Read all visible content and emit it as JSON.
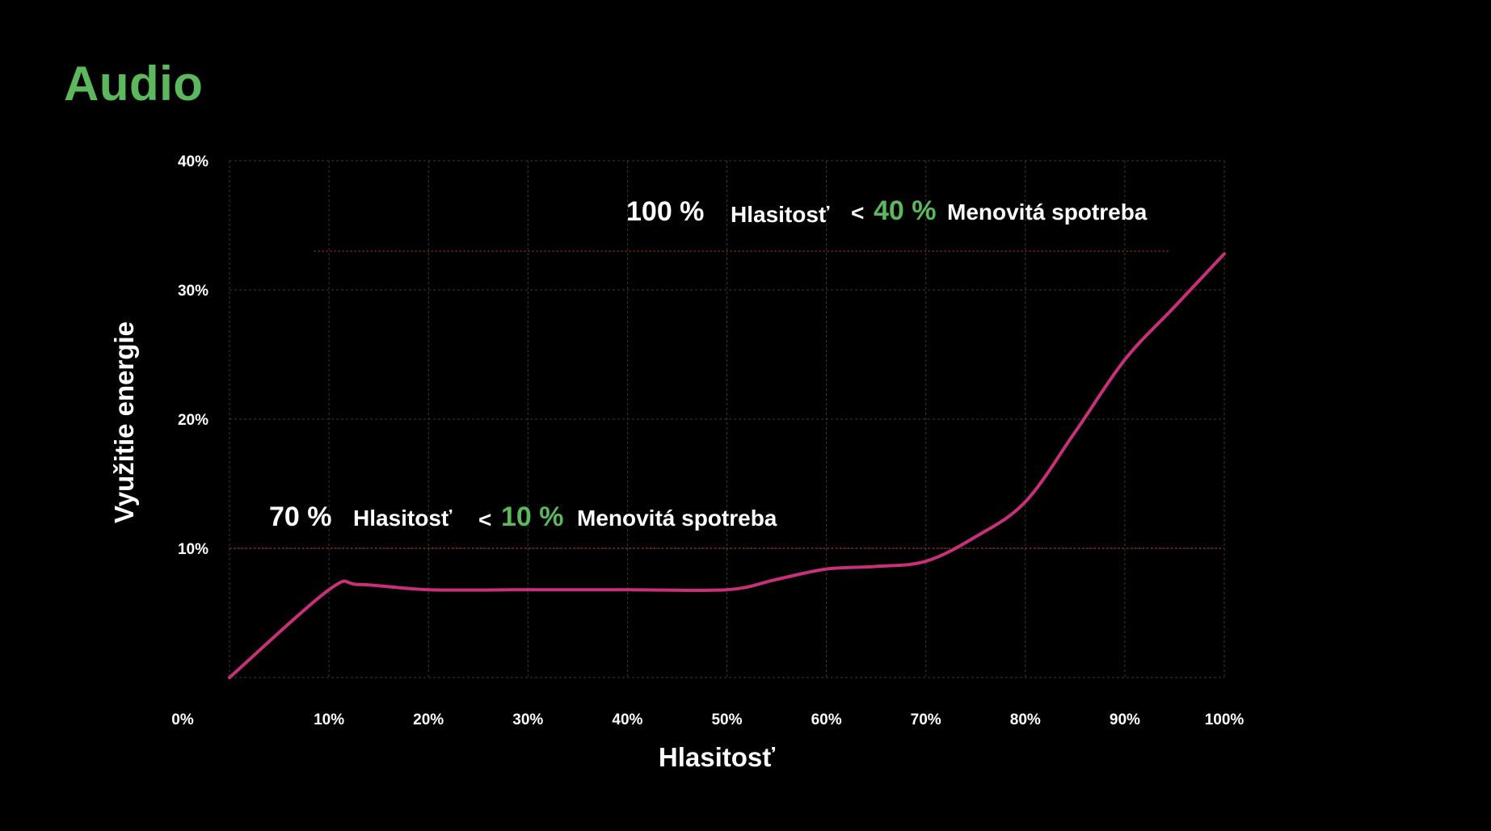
{
  "page": {
    "title": "Audio"
  },
  "chart_data": {
    "type": "line",
    "xlabel": "Hlasitosť",
    "ylabel": "Využitie energie",
    "xlim": [
      0,
      100
    ],
    "ylim": [
      0,
      40
    ],
    "x_ticks": [
      "0%",
      "10%",
      "20%",
      "30%",
      "40%",
      "50%",
      "60%",
      "70%",
      "80%",
      "90%",
      "100%"
    ],
    "y_ticks": [
      "10%",
      "20%",
      "30%",
      "40%"
    ],
    "grid": true,
    "series": [
      {
        "color": "#c8307a",
        "x": [
          0,
          10,
          13,
          20,
          30,
          40,
          50,
          55,
          60,
          65,
          70,
          75,
          80,
          85,
          90,
          95,
          100
        ],
        "y": [
          0,
          6.8,
          7.2,
          6.8,
          6.8,
          6.8,
          6.8,
          7.6,
          8.4,
          8.6,
          9.0,
          10.9,
          13.6,
          19.0,
          24.6,
          28.7,
          32.8
        ]
      }
    ],
    "reference_lines": [
      {
        "y": 33.0,
        "x_from": 8.5,
        "x_to": 94.5,
        "color": "#b03030"
      },
      {
        "y": 10.0,
        "x_from": 0,
        "x_to": 100,
        "color": "#b03030"
      }
    ],
    "annotations": [
      {
        "value": "100 %",
        "label": "Hlasitosť",
        "operator": "<",
        "limit": "40 %",
        "limit_label": "Menovitá spotreba"
      },
      {
        "value": "70 %",
        "label": "Hlasitosť",
        "operator": "<",
        "limit": "10 %",
        "limit_label": "Menovitá spotreba"
      }
    ],
    "colors": {
      "background": "#000000",
      "grid": "#3a3a3a",
      "accent_green": "#5cb85c",
      "text": "#ffffff"
    }
  }
}
